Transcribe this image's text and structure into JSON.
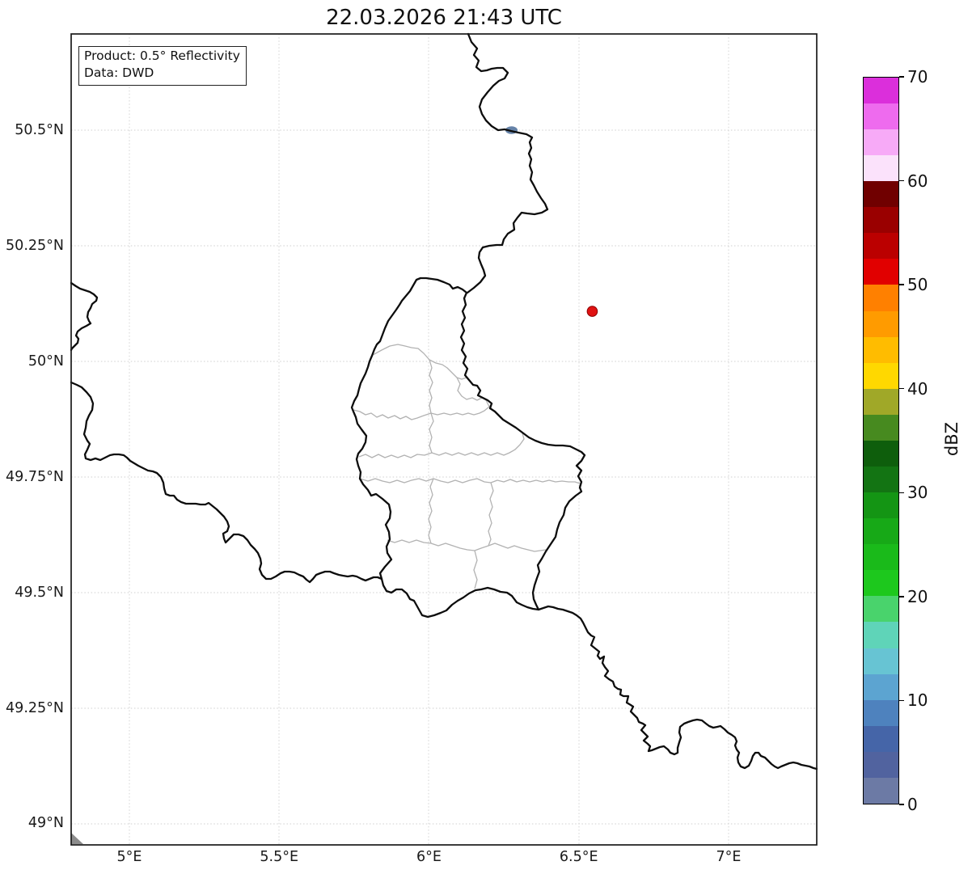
{
  "title": "22.03.2026 21:43 UTC",
  "info_box": {
    "line1": "Product: 0.5° Reflectivity",
    "line2": "Data: DWD"
  },
  "map": {
    "x_ticks": [
      {
        "label": "5°E",
        "lon": 5.0
      },
      {
        "label": "5.5°E",
        "lon": 5.5
      },
      {
        "label": "6°E",
        "lon": 6.0
      },
      {
        "label": "6.5°E",
        "lon": 6.5
      },
      {
        "label": "7°E",
        "lon": 7.0
      }
    ],
    "y_ticks": [
      {
        "label": "50.5°N",
        "lat": 50.5
      },
      {
        "label": "50.25°N",
        "lat": 50.25
      },
      {
        "label": "50°N",
        "lat": 50.0
      },
      {
        "label": "49.75°N",
        "lat": 49.75
      },
      {
        "label": "49.5°N",
        "lat": 49.5
      },
      {
        "label": "49.25°N",
        "lat": 49.25
      },
      {
        "label": "49°N",
        "lat": 49.0
      }
    ],
    "extent": {
      "lon_min": 4.81,
      "lon_max": 7.3,
      "lat_min": 48.97,
      "lat_max": 50.71
    }
  },
  "radar_marker": {
    "lon": 6.545,
    "lat": 50.108,
    "fill": "#e01212",
    "edge": "#8b0000"
  },
  "colors": {
    "national_border": "#0d0d0d",
    "district_border": "#b2b2b2",
    "gridline": "#cfcfcf",
    "river": "#5d7ba3",
    "corner_patch": "#8c8c8c",
    "spine": "#1a1a1a"
  },
  "colorbar": {
    "label": "dBZ",
    "min": 0,
    "max": 70,
    "ticks": [
      0,
      10,
      20,
      30,
      40,
      50,
      60,
      70
    ],
    "segments_bottom_to_top": [
      "#6c7aa5",
      "#51639f",
      "#4565a8",
      "#4e82be",
      "#5ca4d1",
      "#67c4d3",
      "#5fd4b8",
      "#49d36c",
      "#1dc81d",
      "#1aba1a",
      "#17a917",
      "#149514",
      "#137413",
      "#0e5e0c",
      "#478a1f",
      "#a0a828",
      "#ffd800",
      "#ffbc00",
      "#ff9b00",
      "#ff8000",
      "#e10000",
      "#bb0000",
      "#9a0000",
      "#700000",
      "#fbe2fb",
      "#f7aaf7",
      "#ee6bee",
      "#db2fdb"
    ]
  }
}
